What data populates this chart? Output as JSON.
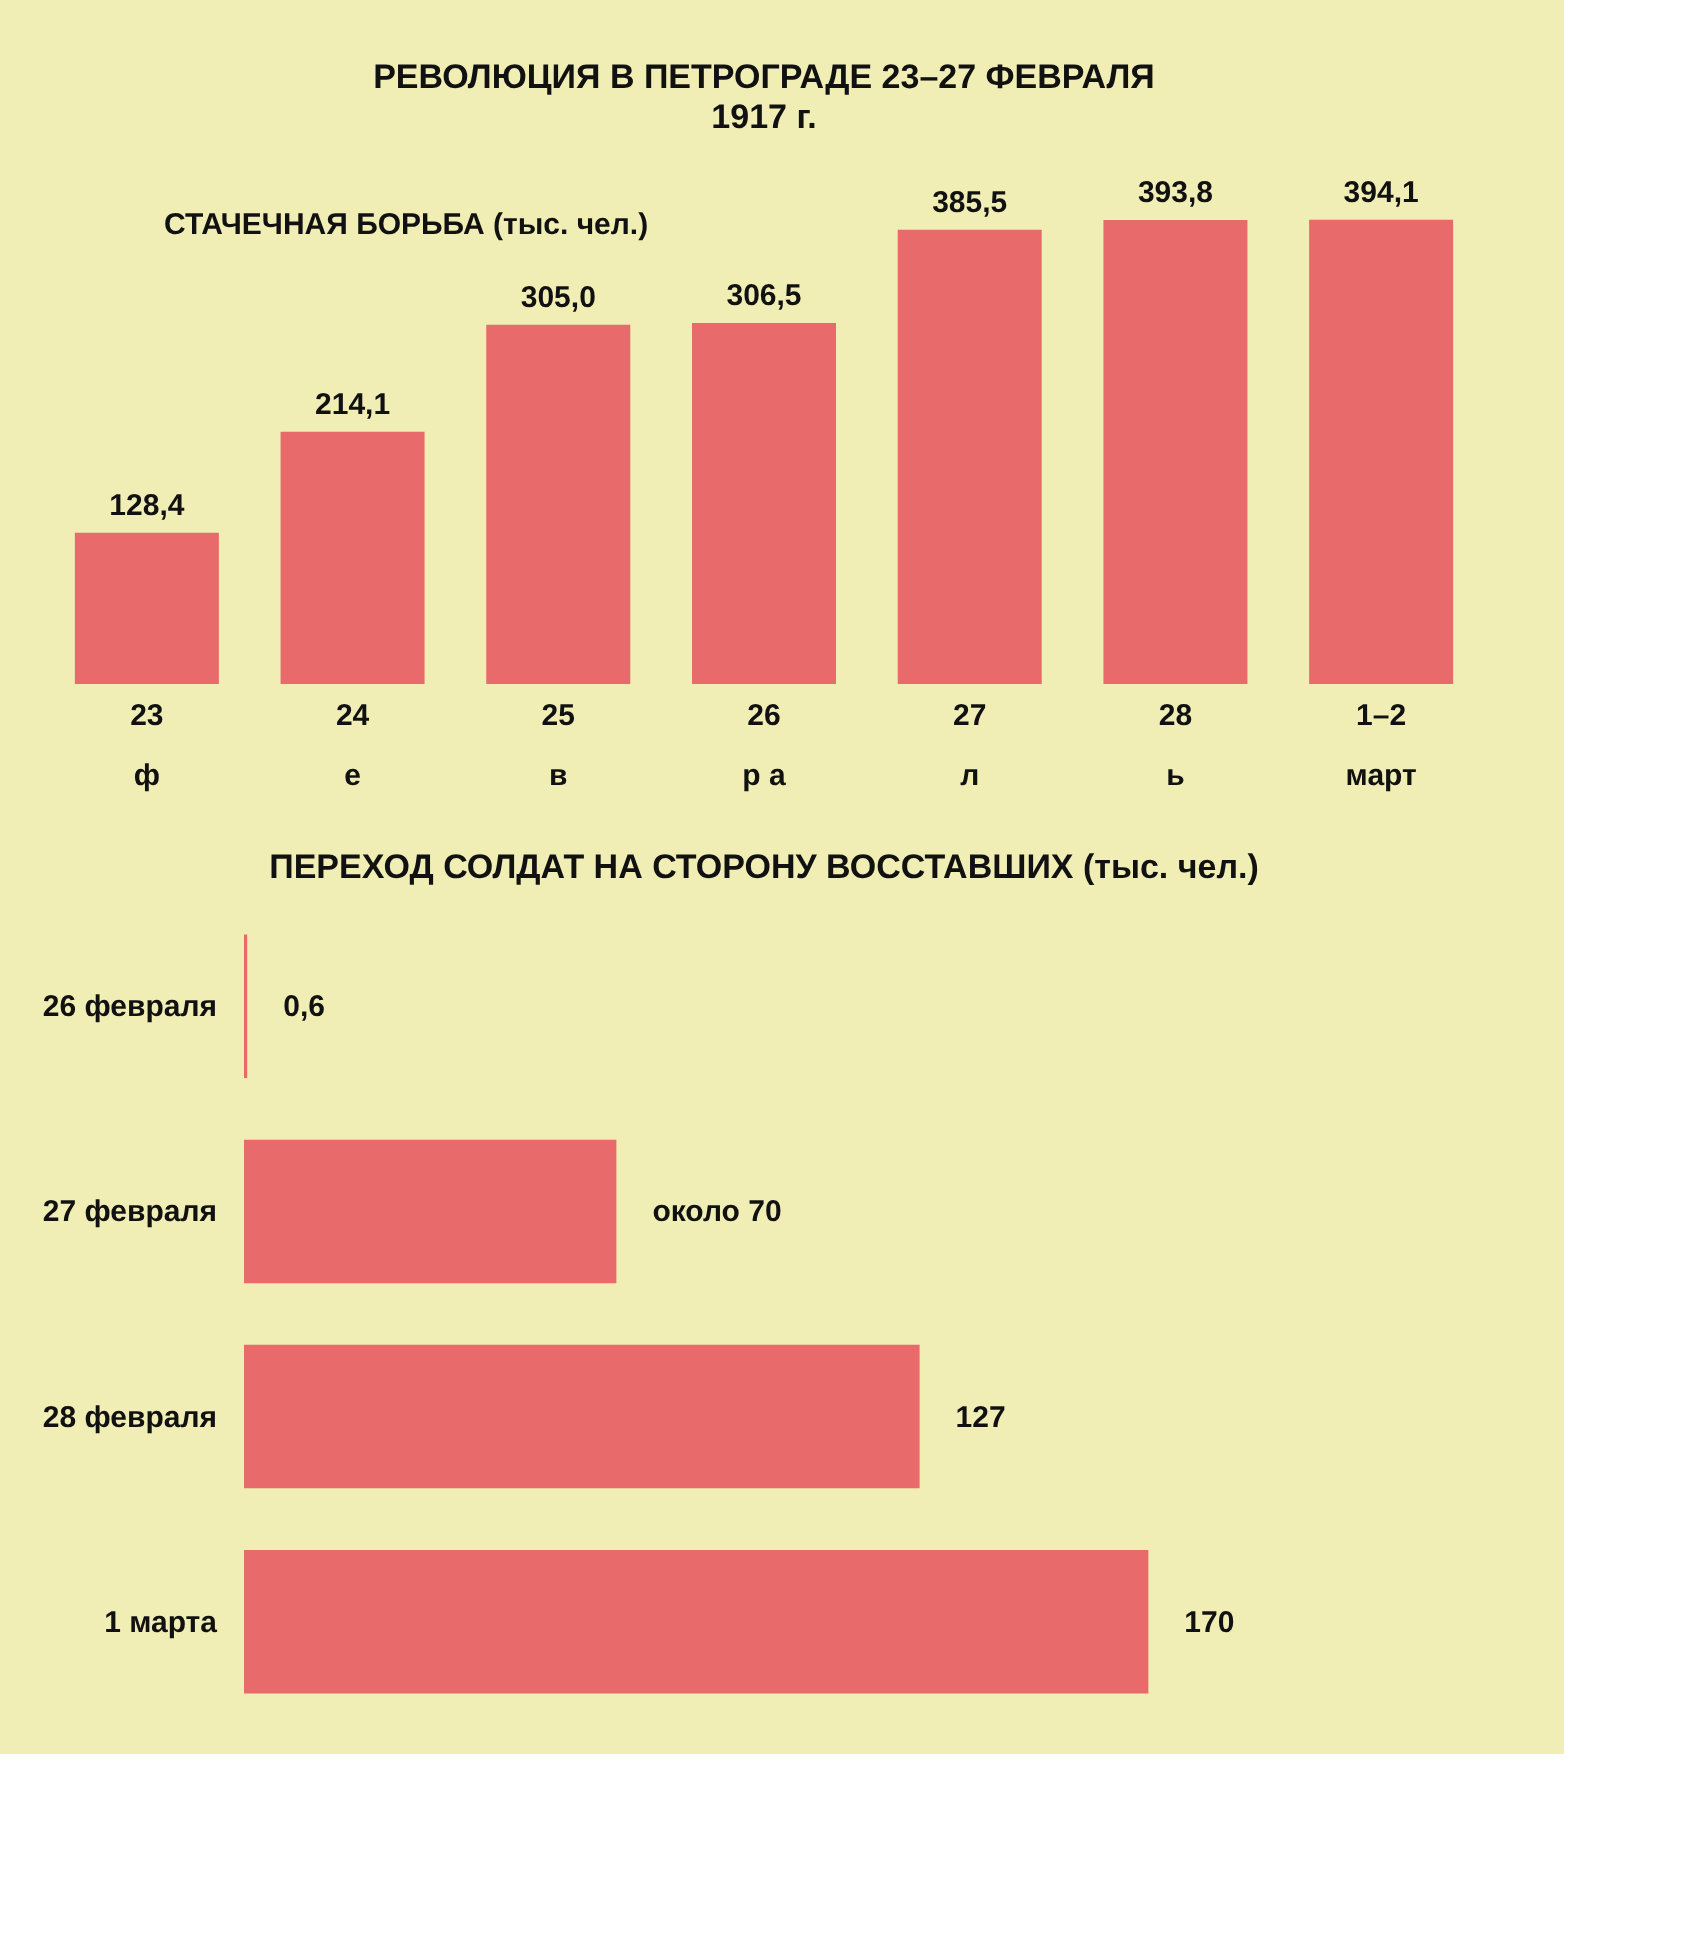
{
  "chart_data": [
    {
      "type": "bar",
      "title": "РЕВОЛЮЦИЯ В ПЕТРОГРАДЕ 23–27 ФЕВРАЛЯ",
      "subtitle": "1917 г.",
      "annotations": [
        "СТАЧЕЧНАЯ БОРЬБА (тыс. чел.)"
      ],
      "categories": [
        "23\nф",
        "24\nе",
        "25\nв",
        "26\nр        а",
        "27\nл",
        "28\nь",
        "1–2\nмарт"
      ],
      "values": [
        128.4,
        214.1,
        305.0,
        306.5,
        385.5,
        393.8,
        394.1
      ],
      "value_labels": [
        "128,4",
        "214,1",
        "305,0",
        "306,5",
        "385,5",
        "393,8",
        "394,1"
      ],
      "color": "#e86a6a"
    },
    {
      "type": "bar",
      "orientation": "horizontal",
      "title": "ПЕРЕХОД СОЛДАТ НА СТОРОНУ ВОССТАВШИХ (тыс. чел.)",
      "categories": [
        "26 февраля",
        "27 февраля",
        "28 февраля",
        "1 марта"
      ],
      "values": [
        0.6,
        70,
        127,
        170
      ],
      "value_labels": [
        "0,6",
        "около 70",
        "127",
        "170"
      ],
      "color": "#e86a6a"
    }
  ]
}
